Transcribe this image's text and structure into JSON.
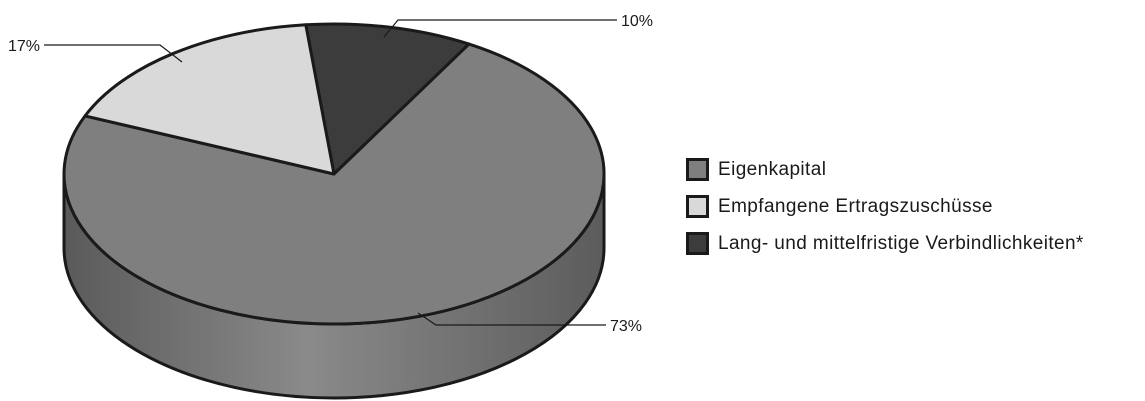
{
  "chart_data": {
    "type": "pie",
    "series": [
      {
        "name": "Eigenkapital",
        "value": 73,
        "label": "73%",
        "color": "#7f7f7f"
      },
      {
        "name": "Empfangene Ertragszuschüsse",
        "value": 17,
        "label": "17%",
        "color": "#d9d9d9"
      },
      {
        "name": "Lang- und mittelfristige Verbindlichkeiten*",
        "value": 10,
        "label": "10%",
        "color": "#3c3c3c"
      }
    ],
    "style": "3d",
    "legend": "right"
  }
}
